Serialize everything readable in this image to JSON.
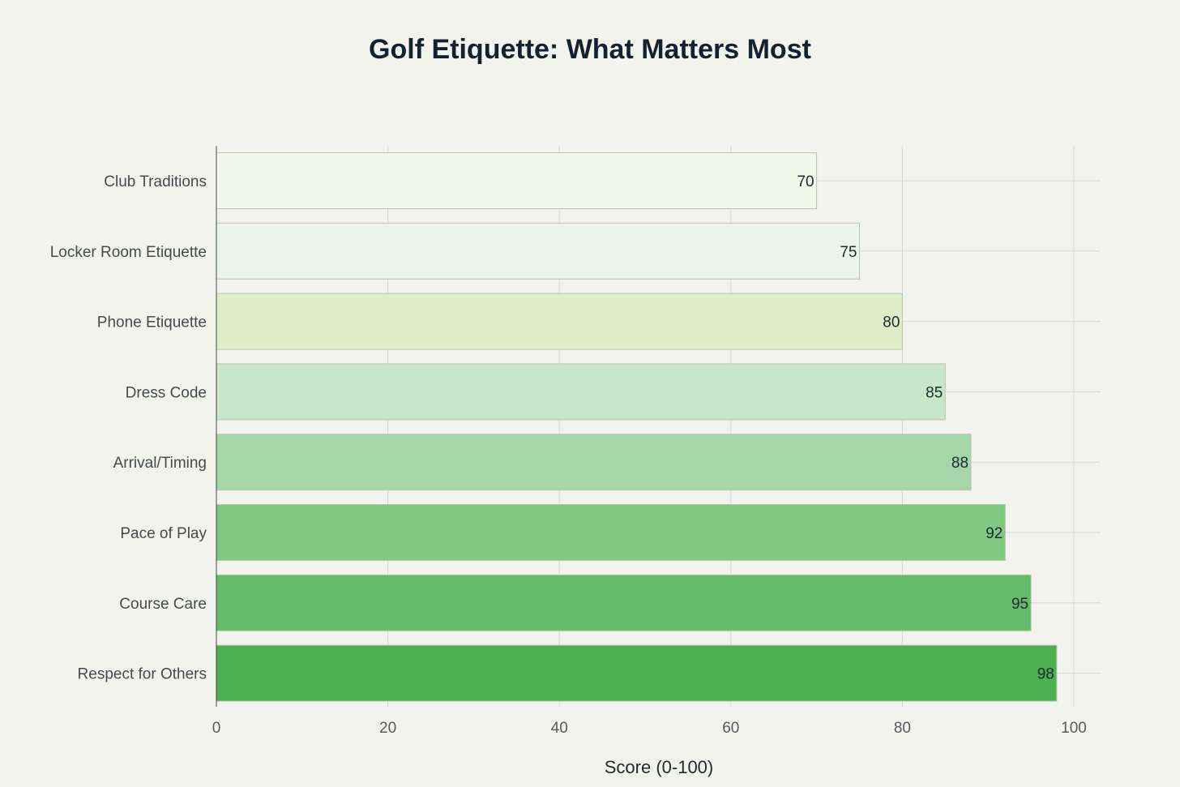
{
  "chart_data": {
    "type": "bar",
    "orientation": "horizontal",
    "title": "Golf Etiquette: What Matters Most",
    "xlabel": "Score (0-100)",
    "ylabel": "",
    "xlim": [
      0,
      100
    ],
    "xticks": [
      0,
      20,
      40,
      60,
      80,
      100
    ],
    "grid": true,
    "categories": [
      "Club Traditions",
      "Locker Room Etiquette",
      "Phone Etiquette",
      "Dress Code",
      "Arrival/Timing",
      "Pace of Play",
      "Course Care",
      "Respect for Others"
    ],
    "values": [
      70,
      75,
      80,
      85,
      88,
      92,
      95,
      98
    ],
    "colors": [
      "#f1f7e9",
      "#eaf4ea",
      "#dfeec8",
      "#c8e6c9",
      "#a5d6a7",
      "#81c784",
      "#66bb6a",
      "#4caf50"
    ]
  }
}
